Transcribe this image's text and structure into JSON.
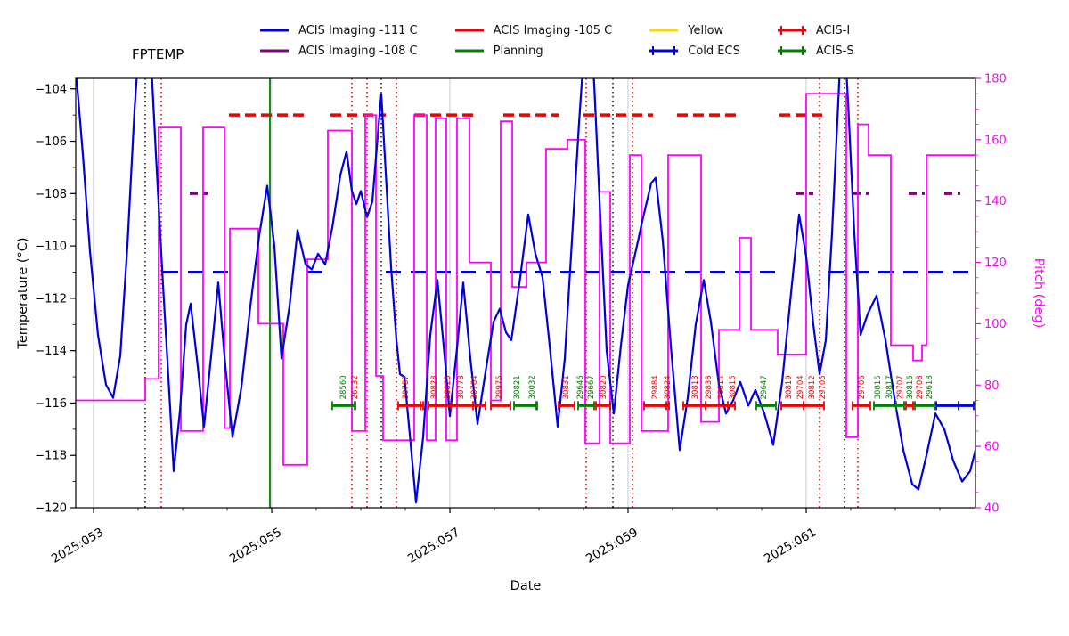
{
  "title": "FPTEMP",
  "legend": {
    "columns": [
      [
        {
          "label": "ACIS Imaging -111 C",
          "color": "#0000dd",
          "style": "line"
        },
        {
          "label": "ACIS Imaging -108 C",
          "color": "#800080",
          "style": "line"
        }
      ],
      [
        {
          "label": "ACIS Imaging -105 C",
          "color": "#ee0000",
          "style": "line"
        },
        {
          "label": "Planning",
          "color": "#008000",
          "style": "line"
        }
      ],
      [
        {
          "label": "Yellow",
          "color": "#ffd700",
          "style": "line"
        },
        {
          "label": "Cold ECS",
          "color": "#0000dd",
          "style": "plusline"
        }
      ],
      [
        {
          "label": "ACIS-I",
          "color": "#ee0000",
          "style": "plusline"
        },
        {
          "label": "ACIS-S",
          "color": "#008000",
          "style": "plusline"
        }
      ]
    ]
  },
  "chart_data": {
    "type": "line",
    "title": "FPTEMP",
    "xlabel": "Date",
    "ylabel_left": "Temperature (°C)",
    "ylabel_right": "Pitch (deg)",
    "x_range_doy": [
      52.8,
      62.9
    ],
    "y_left_range": [
      -120,
      -103.6
    ],
    "y_right_range": [
      40,
      180
    ],
    "x_ticks": [
      {
        "day": 53,
        "label": "2025:053"
      },
      {
        "day": 55,
        "label": "2025:055"
      },
      {
        "day": 57,
        "label": "2025:057"
      },
      {
        "day": 59,
        "label": "2025:059"
      },
      {
        "day": 61,
        "label": "2025:061"
      }
    ],
    "y_left_ticks": [
      {
        "v": -104,
        "label": "−104"
      },
      {
        "v": -106,
        "label": "−106"
      },
      {
        "v": -108,
        "label": "−108"
      },
      {
        "v": -110,
        "label": "−110"
      },
      {
        "v": -112,
        "label": "−112"
      },
      {
        "v": -114,
        "label": "−114"
      },
      {
        "v": -116,
        "label": "−116"
      },
      {
        "v": -118,
        "label": "−118"
      },
      {
        "v": -120,
        "label": "−120"
      }
    ],
    "y_right_ticks": [
      {
        "v": 40,
        "label": "40"
      },
      {
        "v": 60,
        "label": "60"
      },
      {
        "v": 80,
        "label": "80"
      },
      {
        "v": 100,
        "label": "100"
      },
      {
        "v": 120,
        "label": "120"
      },
      {
        "v": 140,
        "label": "140"
      },
      {
        "v": 160,
        "label": "160"
      },
      {
        "v": 180,
        "label": "180"
      }
    ],
    "colors": {
      "temperature": "#0000dd",
      "pitch": "#ff00ff",
      "limit_111": "#0000dd",
      "limit_108": "#800080",
      "limit_105": "#ee0000",
      "planning": "#008000",
      "grid": "#c9c9c9",
      "black": "#000000",
      "red": "#ee0000",
      "green": "#008000"
    },
    "temperature_series": {
      "name": "ACIS Focal Plane Temperature",
      "axis": "left",
      "points": [
        [
          52.8,
          -103.2
        ],
        [
          52.88,
          -106.5
        ],
        [
          52.96,
          -110.2
        ],
        [
          53.05,
          -113.4
        ],
        [
          53.14,
          -115.3
        ],
        [
          53.22,
          -115.8
        ],
        [
          53.3,
          -114.2
        ],
        [
          53.38,
          -110.0
        ],
        [
          53.46,
          -104.8
        ],
        [
          53.52,
          -101.8
        ],
        [
          53.58,
          -100.8
        ],
        [
          53.64,
          -102.5
        ],
        [
          53.7,
          -106.5
        ],
        [
          53.78,
          -111.5
        ],
        [
          53.84,
          -115.0
        ],
        [
          53.9,
          -118.6
        ],
        [
          53.97,
          -116.3
        ],
        [
          54.04,
          -113.0
        ],
        [
          54.09,
          -112.2
        ],
        [
          54.17,
          -114.6
        ],
        [
          54.24,
          -116.9
        ],
        [
          54.32,
          -114.2
        ],
        [
          54.4,
          -111.4
        ],
        [
          54.48,
          -114.6
        ],
        [
          54.56,
          -117.3
        ],
        [
          54.66,
          -115.4
        ],
        [
          54.76,
          -112.3
        ],
        [
          54.86,
          -109.6
        ],
        [
          54.95,
          -107.7
        ],
        [
          55.03,
          -110.0
        ],
        [
          55.11,
          -114.3
        ],
        [
          55.2,
          -112.3
        ],
        [
          55.29,
          -109.4
        ],
        [
          55.38,
          -110.7
        ],
        [
          55.45,
          -110.9
        ],
        [
          55.52,
          -110.3
        ],
        [
          55.6,
          -110.7
        ],
        [
          55.68,
          -109.3
        ],
        [
          55.77,
          -107.3
        ],
        [
          55.84,
          -106.4
        ],
        [
          55.9,
          -107.9
        ],
        [
          55.95,
          -108.4
        ],
        [
          56.0,
          -107.9
        ],
        [
          56.07,
          -108.9
        ],
        [
          56.13,
          -108.3
        ],
        [
          56.19,
          -105.8
        ],
        [
          56.23,
          -104.2
        ],
        [
          56.28,
          -107.2
        ],
        [
          56.34,
          -110.8
        ],
        [
          56.4,
          -113.6
        ],
        [
          56.44,
          -114.9
        ],
        [
          56.49,
          -115.0
        ],
        [
          56.55,
          -117.2
        ],
        [
          56.62,
          -119.8
        ],
        [
          56.7,
          -117.3
        ],
        [
          56.78,
          -113.4
        ],
        [
          56.86,
          -111.3
        ],
        [
          56.93,
          -113.8
        ],
        [
          57.0,
          -116.5
        ],
        [
          57.08,
          -113.9
        ],
        [
          57.15,
          -111.4
        ],
        [
          57.23,
          -114.3
        ],
        [
          57.31,
          -116.8
        ],
        [
          57.41,
          -114.6
        ],
        [
          57.49,
          -112.9
        ],
        [
          57.56,
          -112.4
        ],
        [
          57.63,
          -113.3
        ],
        [
          57.69,
          -113.6
        ],
        [
          57.79,
          -111.2
        ],
        [
          57.88,
          -108.8
        ],
        [
          57.96,
          -110.3
        ],
        [
          58.04,
          -111.2
        ],
        [
          58.12,
          -113.8
        ],
        [
          58.21,
          -116.9
        ],
        [
          58.29,
          -114.3
        ],
        [
          58.37,
          -109.8
        ],
        [
          58.45,
          -105.3
        ],
        [
          58.52,
          -101.8
        ],
        [
          58.56,
          -100.9
        ],
        [
          58.62,
          -103.8
        ],
        [
          58.69,
          -109.0
        ],
        [
          58.76,
          -114.0
        ],
        [
          58.84,
          -116.4
        ],
        [
          58.92,
          -113.8
        ],
        [
          59.0,
          -111.5
        ],
        [
          59.08,
          -110.3
        ],
        [
          59.17,
          -108.9
        ],
        [
          59.26,
          -107.6
        ],
        [
          59.31,
          -107.4
        ],
        [
          59.39,
          -109.8
        ],
        [
          59.48,
          -113.8
        ],
        [
          59.58,
          -117.8
        ],
        [
          59.67,
          -115.8
        ],
        [
          59.76,
          -113.0
        ],
        [
          59.85,
          -111.3
        ],
        [
          59.93,
          -112.9
        ],
        [
          60.02,
          -115.3
        ],
        [
          60.1,
          -116.4
        ],
        [
          60.18,
          -115.9
        ],
        [
          60.26,
          -115.2
        ],
        [
          60.35,
          -116.1
        ],
        [
          60.43,
          -115.5
        ],
        [
          60.53,
          -116.4
        ],
        [
          60.63,
          -117.6
        ],
        [
          60.73,
          -115.2
        ],
        [
          60.83,
          -111.8
        ],
        [
          60.92,
          -108.8
        ],
        [
          61.0,
          -110.4
        ],
        [
          61.08,
          -113.0
        ],
        [
          61.15,
          -114.9
        ],
        [
          61.22,
          -113.6
        ],
        [
          61.29,
          -109.5
        ],
        [
          61.36,
          -104.5
        ],
        [
          61.41,
          -100.8
        ],
        [
          61.47,
          -104.5
        ],
        [
          61.54,
          -109.5
        ],
        [
          61.61,
          -113.4
        ],
        [
          61.69,
          -112.6
        ],
        [
          61.79,
          -111.9
        ],
        [
          61.89,
          -113.6
        ],
        [
          61.99,
          -115.8
        ],
        [
          62.09,
          -117.8
        ],
        [
          62.19,
          -119.1
        ],
        [
          62.26,
          -119.3
        ],
        [
          62.35,
          -118.0
        ],
        [
          62.45,
          -116.4
        ],
        [
          62.55,
          -117.0
        ],
        [
          62.65,
          -118.2
        ],
        [
          62.75,
          -119.0
        ],
        [
          62.84,
          -118.6
        ],
        [
          62.9,
          -117.8
        ]
      ]
    },
    "pitch_series": {
      "name": "Pitch",
      "axis": "right",
      "step": true,
      "points": [
        [
          52.8,
          75
        ],
        [
          53.58,
          82
        ],
        [
          53.73,
          164
        ],
        [
          53.98,
          65
        ],
        [
          54.23,
          164
        ],
        [
          54.47,
          66
        ],
        [
          54.53,
          131
        ],
        [
          54.85,
          100
        ],
        [
          55.13,
          54
        ],
        [
          55.4,
          121
        ],
        [
          55.63,
          163
        ],
        [
          55.9,
          65
        ],
        [
          56.05,
          168
        ],
        [
          56.17,
          83
        ],
        [
          56.25,
          62
        ],
        [
          56.6,
          168
        ],
        [
          56.74,
          62
        ],
        [
          56.84,
          167
        ],
        [
          56.96,
          62
        ],
        [
          57.08,
          167
        ],
        [
          57.22,
          120
        ],
        [
          57.46,
          75
        ],
        [
          57.57,
          166
        ],
        [
          57.7,
          112
        ],
        [
          57.86,
          120
        ],
        [
          58.08,
          157
        ],
        [
          58.32,
          160
        ],
        [
          58.52,
          61
        ],
        [
          58.68,
          143
        ],
        [
          58.8,
          61
        ],
        [
          59.02,
          155
        ],
        [
          59.15,
          65
        ],
        [
          59.45,
          155
        ],
        [
          59.82,
          68
        ],
        [
          60.02,
          98
        ],
        [
          60.25,
          128
        ],
        [
          60.38,
          98
        ],
        [
          60.68,
          90
        ],
        [
          61.0,
          175
        ],
        [
          61.45,
          63
        ],
        [
          61.58,
          165
        ],
        [
          61.7,
          155
        ],
        [
          61.95,
          93
        ],
        [
          62.2,
          88
        ],
        [
          62.3,
          93
        ],
        [
          62.35,
          155
        ],
        [
          62.9,
          155
        ]
      ]
    },
    "limit_lines": [
      {
        "name": "ACIS Imaging -111 C",
        "value": -111,
        "color": "#0000dd",
        "dash": "17 11",
        "width": 3,
        "spans": [
          [
            53.78,
            54.52
          ],
          [
            55.4,
            55.66
          ],
          [
            56.28,
            60.7
          ],
          [
            61.25,
            62.9
          ]
        ]
      },
      {
        "name": "ACIS Imaging -108 C",
        "value": -108,
        "color": "#800080",
        "dash": "9 6",
        "width": 3,
        "spans": [
          [
            54.08,
            54.28
          ],
          [
            60.88,
            61.08
          ],
          [
            61.52,
            61.7
          ],
          [
            62.15,
            62.33
          ],
          [
            62.55,
            62.73
          ]
        ]
      },
      {
        "name": "ACIS Imaging -105 C",
        "value": -105,
        "color": "#ee0000",
        "dash": "12 6",
        "width": 3.5,
        "spans": [
          [
            54.52,
            55.42
          ],
          [
            55.66,
            56.28
          ],
          [
            56.6,
            57.28
          ],
          [
            57.6,
            58.22
          ],
          [
            58.5,
            59.28
          ],
          [
            59.55,
            60.25
          ],
          [
            60.7,
            61.22
          ]
        ]
      }
    ],
    "vlines": {
      "black_dotted": [
        53.58,
        56.23,
        58.83,
        61.43
      ],
      "red_dotted": [
        53.76,
        55.9,
        56.07,
        56.4,
        58.53,
        59.05,
        61.15,
        61.58
      ],
      "green_solid": [
        54.98
      ]
    },
    "instrument_segments": {
      "y_value": -116.1,
      "acis_i": [
        [
          56.42,
          56.7
        ],
        [
          56.76,
          57.4
        ],
        [
          57.46,
          57.68
        ],
        [
          58.22,
          58.4
        ],
        [
          58.64,
          58.8
        ],
        [
          59.18,
          59.46
        ],
        [
          59.62,
          60.2
        ],
        [
          60.72,
          61.2
        ],
        [
          61.52,
          61.72
        ],
        [
          62.12,
          62.2
        ]
      ],
      "acis_s": [
        [
          55.68,
          55.94
        ],
        [
          57.72,
          57.98
        ],
        [
          58.44,
          58.62
        ],
        [
          60.44,
          60.66
        ],
        [
          61.76,
          62.1
        ],
        [
          62.22,
          62.44
        ]
      ],
      "cold_ecs": [
        [
          62.46,
          62.88
        ]
      ]
    },
    "obsid_labels": [
      {
        "id": "28560",
        "day": 55.8,
        "color": "green"
      },
      {
        "id": "26132",
        "day": 55.93,
        "color": "red"
      },
      {
        "id": "30787",
        "day": 56.5,
        "color": "red"
      },
      {
        "id": "30828",
        "day": 56.82,
        "color": "red"
      },
      {
        "id": "30823",
        "day": 56.97,
        "color": "red"
      },
      {
        "id": "30778",
        "day": 57.12,
        "color": "red"
      },
      {
        "id": "30784",
        "day": 57.27,
        "color": "red"
      },
      {
        "id": "29975",
        "day": 57.55,
        "color": "red"
      },
      {
        "id": "30821",
        "day": 57.75,
        "color": "green"
      },
      {
        "id": "30032",
        "day": 57.92,
        "color": "green"
      },
      {
        "id": "30831",
        "day": 58.3,
        "color": "red"
      },
      {
        "id": "29646",
        "day": 58.46,
        "color": "green"
      },
      {
        "id": "29667",
        "day": 58.58,
        "color": "green"
      },
      {
        "id": "30820",
        "day": 58.72,
        "color": "red"
      },
      {
        "id": "29884",
        "day": 59.3,
        "color": "red"
      },
      {
        "id": "30824",
        "day": 59.44,
        "color": "red"
      },
      {
        "id": "30813",
        "day": 59.75,
        "color": "red"
      },
      {
        "id": "29838",
        "day": 59.9,
        "color": "red"
      },
      {
        "id": "30814",
        "day": 60.04,
        "color": "red"
      },
      {
        "id": "30815",
        "day": 60.17,
        "color": "red"
      },
      {
        "id": "29647",
        "day": 60.52,
        "color": "green"
      },
      {
        "id": "30819",
        "day": 60.8,
        "color": "red"
      },
      {
        "id": "29704",
        "day": 60.93,
        "color": "red"
      },
      {
        "id": "30812",
        "day": 61.06,
        "color": "red"
      },
      {
        "id": "29705",
        "day": 61.18,
        "color": "red"
      },
      {
        "id": "29706",
        "day": 61.62,
        "color": "red"
      },
      {
        "id": "30815",
        "day": 61.8,
        "color": "green"
      },
      {
        "id": "30817",
        "day": 61.93,
        "color": "green"
      },
      {
        "id": "29707",
        "day": 62.05,
        "color": "red"
      },
      {
        "id": "30816",
        "day": 62.16,
        "color": "green"
      },
      {
        "id": "29708",
        "day": 62.27,
        "color": "red"
      },
      {
        "id": "29618",
        "day": 62.38,
        "color": "green"
      }
    ]
  }
}
